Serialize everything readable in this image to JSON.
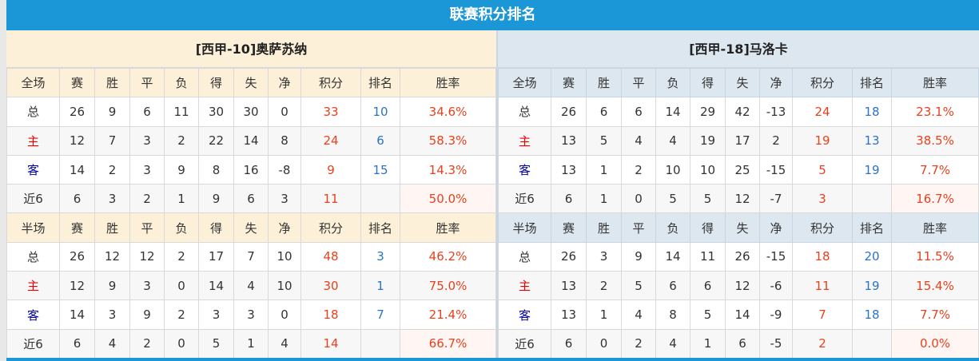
{
  "title": "联赛积分排名",
  "headers": [
    "赛",
    "胜",
    "平",
    "负",
    "得",
    "失",
    "净",
    "积分",
    "排名",
    "胜率"
  ],
  "teams": [
    {
      "name": "[西甲-10]奥萨苏纳",
      "sections": [
        {
          "label": "全场",
          "rows": [
            [
              "总",
              "26",
              "9",
              "6",
              "11",
              "30",
              "30",
              "0",
              "33",
              "10",
              "34.6%"
            ],
            [
              "主",
              "12",
              "7",
              "3",
              "2",
              "22",
              "14",
              "8",
              "24",
              "6",
              "58.3%"
            ],
            [
              "客",
              "14",
              "2",
              "3",
              "9",
              "8",
              "16",
              "-8",
              "9",
              "15",
              "14.3%"
            ],
            [
              "近6",
              "6",
              "3",
              "2",
              "1",
              "9",
              "6",
              "3",
              "11",
              "",
              "50.0%"
            ]
          ]
        },
        {
          "label": "半场",
          "rows": [
            [
              "总",
              "26",
              "12",
              "12",
              "2",
              "17",
              "7",
              "10",
              "48",
              "3",
              "46.2%"
            ],
            [
              "主",
              "12",
              "9",
              "3",
              "0",
              "14",
              "4",
              "10",
              "30",
              "1",
              "75.0%"
            ],
            [
              "客",
              "14",
              "3",
              "9",
              "2",
              "3",
              "3",
              "0",
              "18",
              "7",
              "21.4%"
            ],
            [
              "近6",
              "6",
              "4",
              "2",
              "0",
              "5",
              "1",
              "4",
              "14",
              "",
              "66.7%"
            ]
          ]
        }
      ]
    },
    {
      "name": "[西甲-18]马洛卡",
      "sections": [
        {
          "label": "全场",
          "rows": [
            [
              "总",
              "26",
              "6",
              "6",
              "14",
              "29",
              "42",
              "-13",
              "24",
              "18",
              "23.1%"
            ],
            [
              "主",
              "13",
              "5",
              "4",
              "4",
              "19",
              "17",
              "2",
              "19",
              "13",
              "38.5%"
            ],
            [
              "客",
              "13",
              "1",
              "2",
              "10",
              "10",
              "25",
              "-15",
              "5",
              "19",
              "7.7%"
            ],
            [
              "近6",
              "6",
              "1",
              "0",
              "5",
              "5",
              "12",
              "-7",
              "3",
              "",
              "16.7%"
            ]
          ]
        },
        {
          "label": "半场",
          "rows": [
            [
              "总",
              "26",
              "3",
              "9",
              "14",
              "11",
              "26",
              "-15",
              "18",
              "20",
              "11.5%"
            ],
            [
              "主",
              "13",
              "2",
              "5",
              "6",
              "6",
              "12",
              "-6",
              "11",
              "19",
              "15.4%"
            ],
            [
              "客",
              "13",
              "1",
              "4",
              "8",
              "5",
              "14",
              "-9",
              "7",
              "18",
              "7.7%"
            ],
            [
              "近6",
              "6",
              "0",
              "2",
              "4",
              "1",
              "6",
              "-5",
              "2",
              "",
              "0.0%"
            ]
          ]
        }
      ]
    }
  ],
  "colors": {
    "title_bar": "#1b96d6",
    "points": "#e8411d",
    "rank": "#2b74c4",
    "home": "#ee0000",
    "away": "#0000aa"
  }
}
